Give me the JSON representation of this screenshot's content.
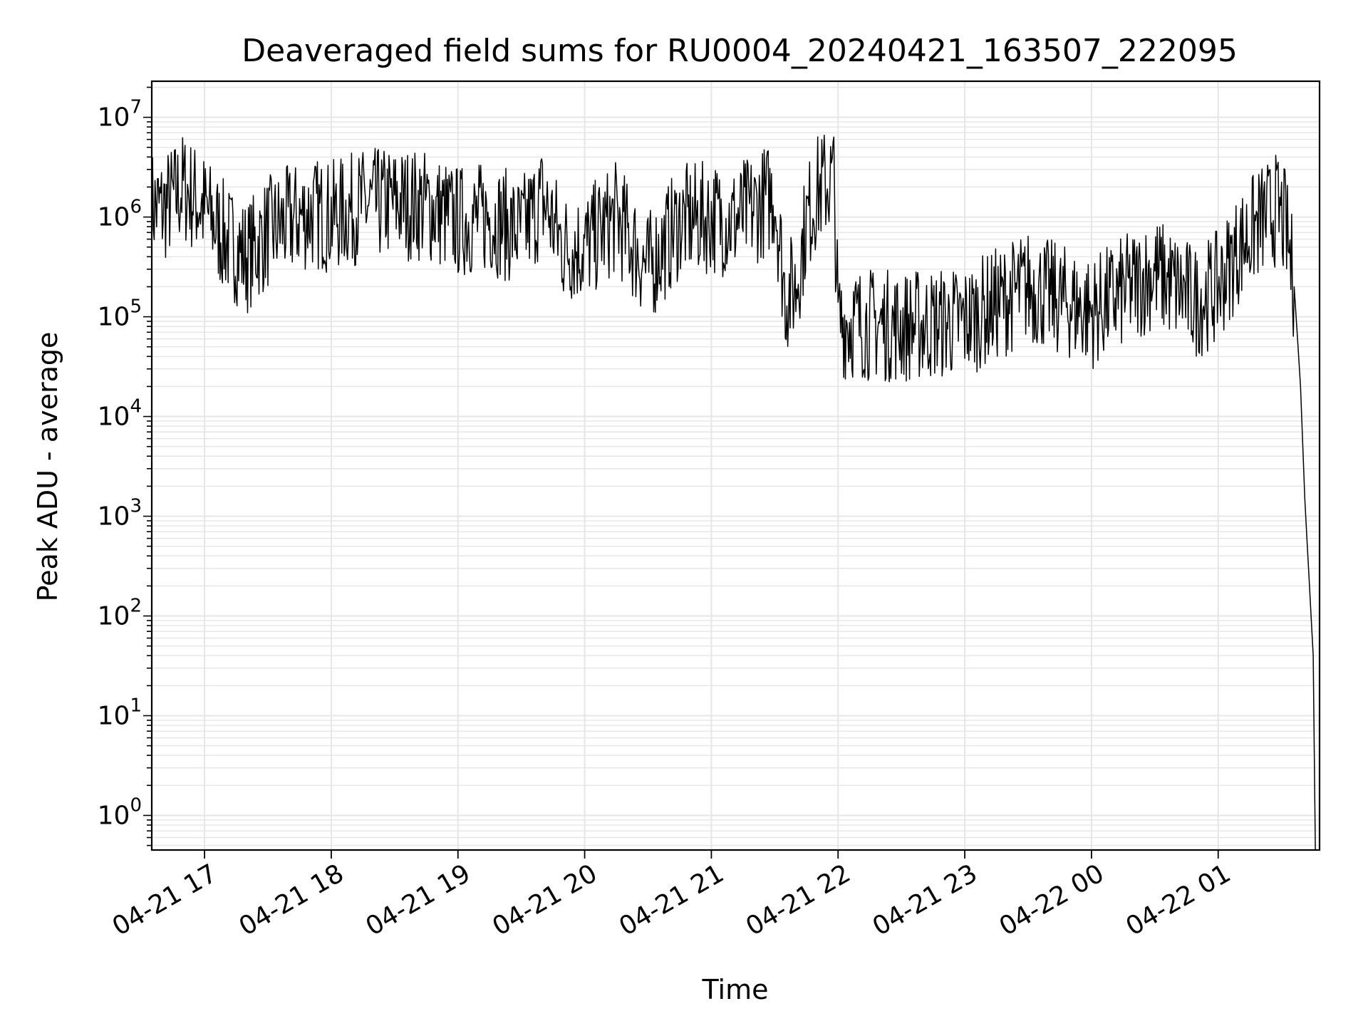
{
  "chart_data": {
    "type": "line",
    "title": "Deaveraged field sums for RU0004_20240421_163507_222095",
    "xlabel": "Time",
    "ylabel": "Peak ADU - average",
    "yscale": "log",
    "ylim": [
      0.45,
      23000000
    ],
    "xlim": [
      "2024-04-21 16:35",
      "2024-04-22 01:48"
    ],
    "grid": true,
    "line_color": "#000000",
    "grid_color": "#e6e6e6",
    "x_ticks": [
      {
        "t": "2024-04-21 17:00",
        "label": "04-21 17"
      },
      {
        "t": "2024-04-21 18:00",
        "label": "04-21 18"
      },
      {
        "t": "2024-04-21 19:00",
        "label": "04-21 19"
      },
      {
        "t": "2024-04-21 20:00",
        "label": "04-21 20"
      },
      {
        "t": "2024-04-21 21:00",
        "label": "04-21 21"
      },
      {
        "t": "2024-04-21 22:00",
        "label": "04-21 22"
      },
      {
        "t": "2024-04-21 23:00",
        "label": "04-21 23"
      },
      {
        "t": "2024-04-22 00:00",
        "label": "04-22 00"
      },
      {
        "t": "2024-04-22 01:00",
        "label": "04-22 01"
      }
    ],
    "y_ticks": [
      {
        "value": 1,
        "base": "10",
        "exp": "0"
      },
      {
        "value": 10,
        "base": "10",
        "exp": "1"
      },
      {
        "value": 100,
        "base": "10",
        "exp": "2"
      },
      {
        "value": 1000,
        "base": "10",
        "exp": "3"
      },
      {
        "value": 10000,
        "base": "10",
        "exp": "4"
      },
      {
        "value": 100000,
        "base": "10",
        "exp": "5"
      },
      {
        "value": 1000000,
        "base": "10",
        "exp": "6"
      },
      {
        "value": 10000000,
        "base": "10",
        "exp": "7"
      }
    ],
    "series": [
      {
        "points": [
          [
            "2024-04-21 16:35",
            1300000
          ],
          [
            "2024-04-21 16:40",
            1200000
          ],
          [
            "2024-04-21 16:45",
            1500000
          ],
          [
            "2024-04-21 16:50",
            2000000
          ],
          [
            "2024-04-21 17:00",
            1200000
          ],
          [
            "2024-04-21 17:10",
            600000
          ],
          [
            "2024-04-21 17:20",
            400000
          ],
          [
            "2024-04-21 17:30",
            700000
          ],
          [
            "2024-04-21 17:40",
            900000
          ],
          [
            "2024-04-21 17:50",
            1100000
          ],
          [
            "2024-04-21 18:00",
            1000000
          ],
          [
            "2024-04-21 18:15",
            1300000
          ],
          [
            "2024-04-21 18:30",
            1400000
          ],
          [
            "2024-04-21 18:45",
            1300000
          ],
          [
            "2024-04-21 19:00",
            900000
          ],
          [
            "2024-04-21 19:15",
            1000000
          ],
          [
            "2024-04-21 19:30",
            700000
          ],
          [
            "2024-04-21 19:40",
            1500000
          ],
          [
            "2024-04-21 19:50",
            500000
          ],
          [
            "2024-04-21 20:00",
            500000
          ],
          [
            "2024-04-21 20:15",
            1000000
          ],
          [
            "2024-04-21 20:30",
            300000
          ],
          [
            "2024-04-21 20:45",
            900000
          ],
          [
            "2024-04-21 21:00",
            1000000
          ],
          [
            "2024-04-21 21:10",
            900000
          ],
          [
            "2024-04-21 21:20",
            1200000
          ],
          [
            "2024-04-21 21:30",
            1700000
          ],
          [
            "2024-04-21 21:35",
            160000
          ],
          [
            "2024-04-21 21:40",
            200000
          ],
          [
            "2024-04-21 21:45",
            900000
          ],
          [
            "2024-04-21 21:50",
            1800000
          ],
          [
            "2024-04-21 21:58",
            2500000
          ],
          [
            "2024-04-21 22:00",
            90000
          ],
          [
            "2024-04-21 22:30",
            80000
          ],
          [
            "2024-04-21 23:00",
            90000
          ],
          [
            "2024-04-21 23:30",
            200000
          ],
          [
            "2024-04-22 00:00",
            110000
          ],
          [
            "2024-04-22 00:30",
            280000
          ],
          [
            "2024-04-22 00:50",
            140000
          ],
          [
            "2024-04-22 01:00",
            200000
          ],
          [
            "2024-04-22 01:10",
            500000
          ],
          [
            "2024-04-22 01:20",
            900000
          ],
          [
            "2024-04-22 01:28",
            1200000
          ],
          [
            "2024-04-22 01:32",
            800000
          ],
          [
            "2024-04-22 01:36",
            200000
          ],
          [
            "2024-04-22 01:39",
            20000
          ],
          [
            "2024-04-22 01:41",
            1500
          ],
          [
            "2024-04-22 01:44",
            100
          ],
          [
            "2024-04-22 01:45",
            40
          ],
          [
            "2024-04-22 01:46",
            0.45
          ]
        ]
      }
    ]
  }
}
